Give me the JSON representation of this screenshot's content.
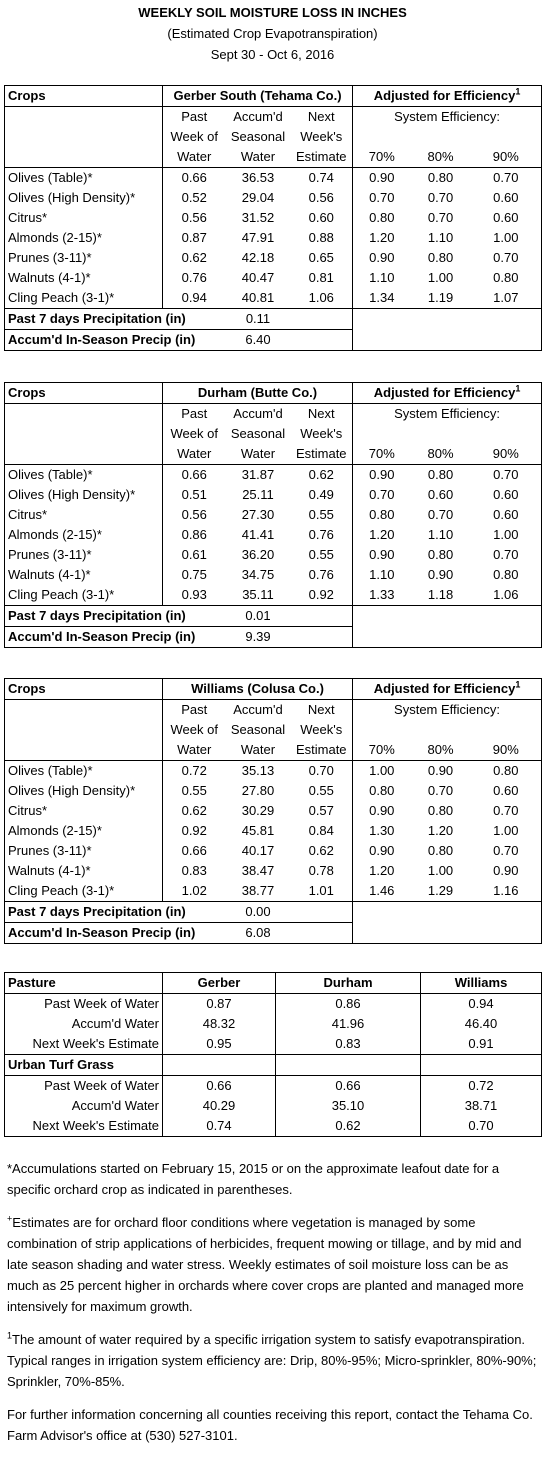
{
  "header": {
    "title": "WEEKLY SOIL MOISTURE LOSS IN INCHES",
    "subtitle": "(Estimated Crop Evapotranspiration)",
    "dates": "Sept 30 - Oct 6, 2016"
  },
  "stations": [
    {
      "crops_label": "Crops",
      "station": "Gerber South (Tehama Co.)",
      "adjusted": "Adjusted for Efficiency",
      "adjusted_note": "1",
      "system_efficiency": "System Efficiency:",
      "columns": [
        [
          "Past",
          "Week of",
          "Water"
        ],
        [
          "Accum'd",
          "Seasonal",
          "Water"
        ],
        [
          "Next",
          "Week's",
          "Estimate"
        ]
      ],
      "efficiencies": [
        "70%",
        "80%",
        "90%"
      ],
      "rows": [
        [
          "Olives (Table)*",
          "0.66",
          "36.53",
          "0.74",
          "0.90",
          "0.80",
          "0.70"
        ],
        [
          "Olives (High Density)*",
          "0.52",
          "29.04",
          "0.56",
          "0.70",
          "0.70",
          "0.60"
        ],
        [
          "Citrus*",
          "0.56",
          "31.52",
          "0.60",
          "0.80",
          "0.70",
          "0.60"
        ],
        [
          "Almonds (2-15)*",
          "0.87",
          "47.91",
          "0.88",
          "1.20",
          "1.10",
          "1.00"
        ],
        [
          "Prunes (3-11)*",
          "0.62",
          "42.18",
          "0.65",
          "0.90",
          "0.80",
          "0.70"
        ],
        [
          "Walnuts (4-1)*",
          "0.76",
          "40.47",
          "0.81",
          "1.10",
          "1.00",
          "0.80"
        ],
        [
          "Cling Peach (3-1)*",
          "0.94",
          "40.81",
          "1.06",
          "1.34",
          "1.19",
          "1.07"
        ]
      ],
      "precip": [
        [
          "Past 7 days Precipitation (in)",
          "0.11"
        ],
        [
          "Accum'd In-Season Precip (in)",
          "6.40"
        ]
      ]
    },
    {
      "crops_label": "Crops",
      "station": "Durham (Butte Co.)",
      "adjusted": "Adjusted for Efficiency",
      "adjusted_note": "1",
      "system_efficiency": "System Efficiency:",
      "columns": [
        [
          "Past",
          "Week of",
          "Water"
        ],
        [
          "Accum'd",
          "Seasonal",
          "Water"
        ],
        [
          "Next",
          "Week's",
          "Estimate"
        ]
      ],
      "efficiencies": [
        "70%",
        "80%",
        "90%"
      ],
      "rows": [
        [
          "Olives (Table)*",
          "0.66",
          "31.87",
          "0.62",
          "0.90",
          "0.80",
          "0.70"
        ],
        [
          "Olives (High Density)*",
          "0.51",
          "25.11",
          "0.49",
          "0.70",
          "0.60",
          "0.60"
        ],
        [
          "Citrus*",
          "0.56",
          "27.30",
          "0.55",
          "0.80",
          "0.70",
          "0.60"
        ],
        [
          "Almonds (2-15)*",
          "0.86",
          "41.41",
          "0.76",
          "1.20",
          "1.10",
          "1.00"
        ],
        [
          "Prunes (3-11)*",
          "0.61",
          "36.20",
          "0.55",
          "0.90",
          "0.80",
          "0.70"
        ],
        [
          "Walnuts (4-1)*",
          "0.75",
          "34.75",
          "0.76",
          "1.10",
          "0.90",
          "0.80"
        ],
        [
          "Cling Peach (3-1)*",
          "0.93",
          "35.11",
          "0.92",
          "1.33",
          "1.18",
          "1.06"
        ]
      ],
      "precip": [
        [
          "Past 7 days Precipitation (in)",
          "0.01"
        ],
        [
          "Accum'd In-Season Precip (in)",
          "9.39"
        ]
      ]
    },
    {
      "crops_label": "Crops",
      "station": "Williams (Colusa Co.)",
      "adjusted": "Adjusted for Efficiency",
      "adjusted_note": "1",
      "system_efficiency": "System Efficiency:",
      "columns": [
        [
          "Past",
          "Week of",
          "Water"
        ],
        [
          "Accum'd",
          "Seasonal",
          "Water"
        ],
        [
          "Next",
          "Week's",
          "Estimate"
        ]
      ],
      "efficiencies": [
        "70%",
        "80%",
        "90%"
      ],
      "rows": [
        [
          "Olives (Table)*",
          "0.72",
          "35.13",
          "0.70",
          "1.00",
          "0.90",
          "0.80"
        ],
        [
          "Olives (High Density)*",
          "0.55",
          "27.80",
          "0.55",
          "0.80",
          "0.70",
          "0.60"
        ],
        [
          "Citrus*",
          "0.62",
          "30.29",
          "0.57",
          "0.90",
          "0.80",
          "0.70"
        ],
        [
          "Almonds (2-15)*",
          "0.92",
          "45.81",
          "0.84",
          "1.30",
          "1.20",
          "1.00"
        ],
        [
          "Prunes (3-11)*",
          "0.66",
          "40.17",
          "0.62",
          "0.90",
          "0.80",
          "0.70"
        ],
        [
          "Walnuts (4-1)*",
          "0.83",
          "38.47",
          "0.78",
          "1.20",
          "1.00",
          "0.90"
        ],
        [
          "Cling Peach (3-1)*",
          "1.02",
          "38.77",
          "1.01",
          "1.46",
          "1.29",
          "1.16"
        ]
      ],
      "precip": [
        [
          "Past 7 days Precipitation (in)",
          "0.00"
        ],
        [
          "Accum'd In-Season Precip (in)",
          "6.08"
        ]
      ]
    }
  ],
  "pasture": {
    "headers": [
      "Pasture",
      "Gerber",
      "Durham",
      "Williams"
    ],
    "rows": [
      [
        "Past Week of Water",
        "0.87",
        "0.86",
        "0.94"
      ],
      [
        "Accum'd Water",
        "48.32",
        "41.96",
        "46.40"
      ],
      [
        "Next Week's Estimate",
        "0.95",
        "0.83",
        "0.91"
      ]
    ],
    "turf_label": "Urban Turf Grass",
    "turf_rows": [
      [
        "Past Week of Water",
        "0.66",
        "0.66",
        "0.72"
      ],
      [
        "Accum'd Water",
        "40.29",
        "35.10",
        "38.71"
      ],
      [
        "Next Week's Estimate",
        "0.74",
        "0.62",
        "0.70"
      ]
    ]
  },
  "notes": [
    {
      "text": "*Accumulations started on February 15, 2015 or on the approximate leafout date for a specific orchard crop as indicated in parentheses."
    },
    {
      "mark": "+",
      "text": "Estimates are for orchard floor conditions where vegetation is managed by some combination of strip applications of herbicides, frequent mowing or tillage, and by mid and late season shading and water stress.  Weekly estimates of soil moisture loss can be as much as 25 percent higher in orchards where cover crops are planted and managed more intensively for maximum growth."
    },
    {
      "mark": "1",
      "text": "The amount of water required by a specific irrigation system to satisfy evapotranspiration. Typical ranges in irrigation system efficiency are: Drip, 80%-95%; Micro-sprinkler, 80%-90%; Sprinkler, 70%-85%."
    },
    {
      "text": "For further information concerning all counties receiving this report, contact the Tehama Co. Farm Advisor's office at (530) 527-3101."
    }
  ]
}
